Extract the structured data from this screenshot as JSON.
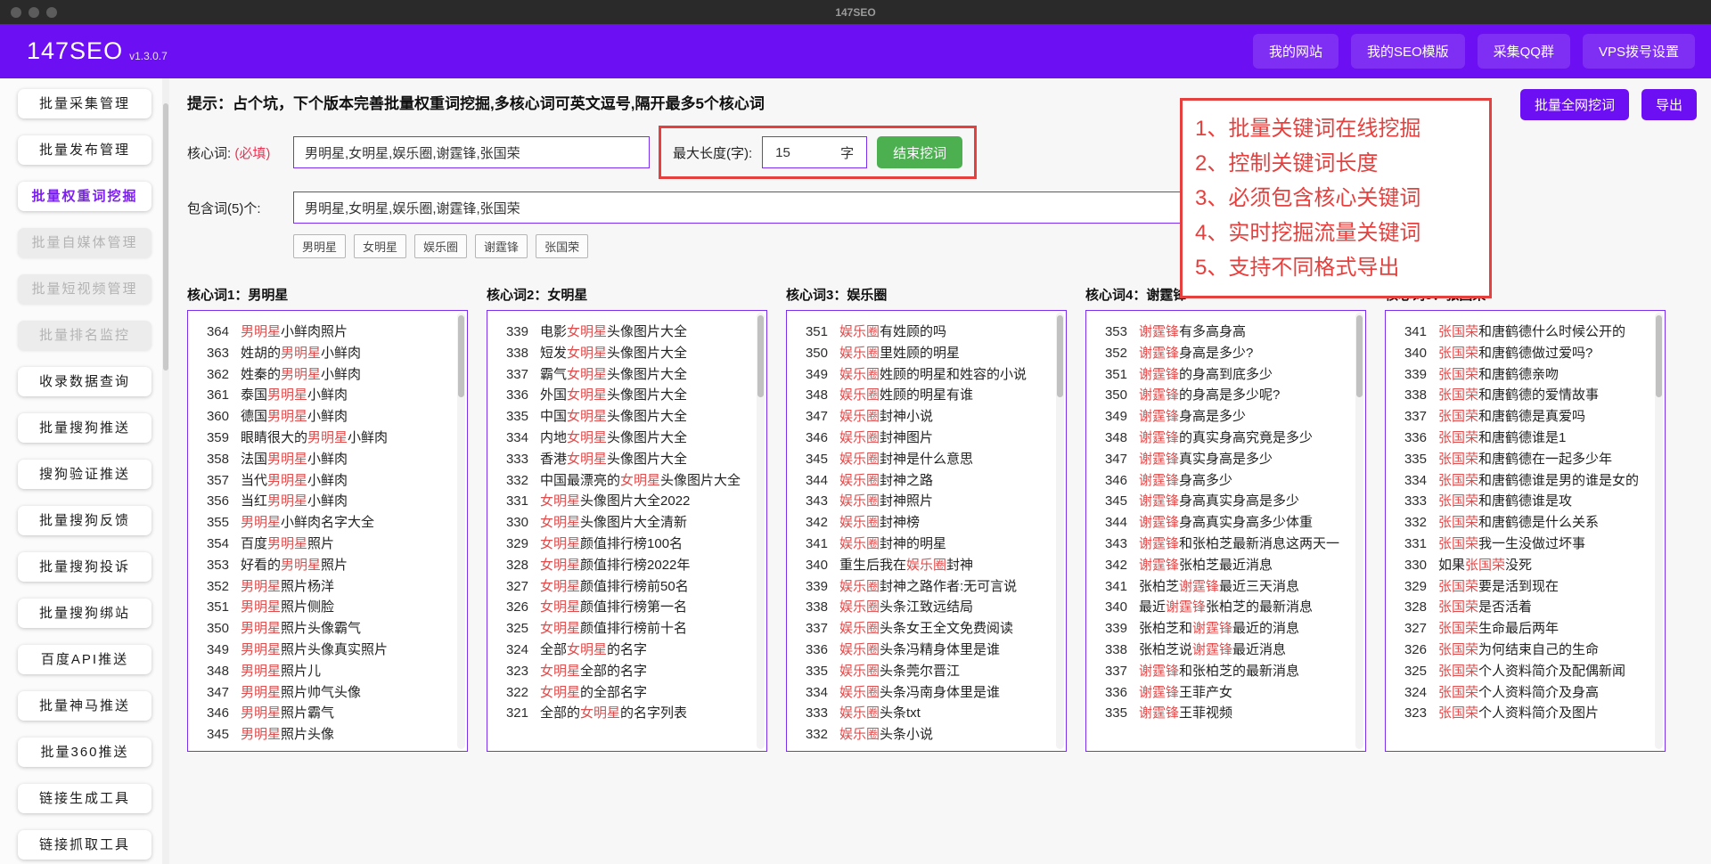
{
  "window": {
    "title": "147SEO"
  },
  "header": {
    "brand": "147SEO",
    "version": "v1.3.0.7",
    "nav": [
      "我的网站",
      "我的SEO模版",
      "采集QQ群",
      "VPS拨号设置"
    ]
  },
  "sidebar": {
    "items": [
      {
        "label": "批量采集管理",
        "state": "normal"
      },
      {
        "label": "批量发布管理",
        "state": "normal"
      },
      {
        "label": "批量权重词挖掘",
        "state": "active"
      },
      {
        "label": "批量自媒体管理",
        "state": "disabled"
      },
      {
        "label": "批量短视频管理",
        "state": "disabled"
      },
      {
        "label": "批量排名监控",
        "state": "disabled"
      },
      {
        "label": "收录数据查询",
        "state": "normal"
      },
      {
        "label": "批量搜狗推送",
        "state": "normal"
      },
      {
        "label": "搜狗验证推送",
        "state": "normal"
      },
      {
        "label": "批量搜狗反馈",
        "state": "normal"
      },
      {
        "label": "批量搜狗投诉",
        "state": "normal"
      },
      {
        "label": "批量搜狗绑站",
        "state": "normal"
      },
      {
        "label": "百度API推送",
        "state": "normal"
      },
      {
        "label": "批量神马推送",
        "state": "normal"
      },
      {
        "label": "批量360推送",
        "state": "normal"
      },
      {
        "label": "链接生成工具",
        "state": "normal"
      },
      {
        "label": "链接抓取工具",
        "state": "normal"
      }
    ]
  },
  "toolbar": {
    "dig_all": "批量全网挖词",
    "export": "导出"
  },
  "tip": "提示：占个坑，下个版本完善批量权重词挖掘,多核心词可英文逗号,隔开最多5个核心词",
  "form": {
    "core_label": "核心词:",
    "required": "(必填)",
    "core_value": "男明星,女明星,娱乐圈,谢霆锋,张国荣",
    "maxlen_label": "最大长度(字):",
    "maxlen_value": "15",
    "maxlen_suffix": "字",
    "submit": "结束挖词",
    "include_label": "包含词(5)个:",
    "include_value": "男明星,女明星,娱乐圈,谢霆锋,张国荣",
    "tags": [
      "男明星",
      "女明星",
      "娱乐圈",
      "谢霆锋",
      "张国荣"
    ]
  },
  "annotation": {
    "lines": [
      "1、批量关键词在线挖掘",
      "2、控制关键词长度",
      "3、必须包含核心关键词",
      "4、实时挖掘流量关键词",
      "5、支持不同格式导出"
    ]
  },
  "columns": [
    {
      "title": "核心词1：男明星",
      "keyword": "男明星",
      "rows": [
        {
          "n": 364,
          "pre": "",
          "post": "小鲜肉照片"
        },
        {
          "n": 363,
          "pre": "姓胡的",
          "post": "小鲜肉"
        },
        {
          "n": 362,
          "pre": "姓秦的",
          "post": "小鲜肉"
        },
        {
          "n": 361,
          "pre": "泰国",
          "post": "小鲜肉"
        },
        {
          "n": 360,
          "pre": "德国",
          "post": "小鲜肉"
        },
        {
          "n": 359,
          "pre": "眼睛很大的",
          "post": "小鲜肉"
        },
        {
          "n": 358,
          "pre": "法国",
          "post": "小鲜肉"
        },
        {
          "n": 357,
          "pre": "当代",
          "post": "小鲜肉"
        },
        {
          "n": 356,
          "pre": "当红",
          "post": "小鲜肉"
        },
        {
          "n": 355,
          "pre": "",
          "post": "小鲜肉名字大全"
        },
        {
          "n": 354,
          "pre": "百度",
          "post": "照片"
        },
        {
          "n": 353,
          "pre": "好看的",
          "post": "照片"
        },
        {
          "n": 352,
          "pre": "",
          "post": "照片杨洋"
        },
        {
          "n": 351,
          "pre": "",
          "post": "照片侧脸"
        },
        {
          "n": 350,
          "pre": "",
          "post": "照片头像霸气"
        },
        {
          "n": 349,
          "pre": "",
          "post": "照片头像真实照片"
        },
        {
          "n": 348,
          "pre": "",
          "post": "照片儿"
        },
        {
          "n": 347,
          "pre": "",
          "post": "照片帅气头像"
        },
        {
          "n": 346,
          "pre": "",
          "post": "照片霸气"
        },
        {
          "n": 345,
          "pre": "",
          "post": "照片头像"
        }
      ]
    },
    {
      "title": "核心词2：女明星",
      "keyword": "女明星",
      "rows": [
        {
          "n": 339,
          "pre": "电影",
          "post": "头像图片大全"
        },
        {
          "n": 338,
          "pre": "短发",
          "post": "头像图片大全"
        },
        {
          "n": 337,
          "pre": "霸气",
          "post": "头像图片大全"
        },
        {
          "n": 336,
          "pre": "外国",
          "post": "头像图片大全"
        },
        {
          "n": 335,
          "pre": "中国",
          "post": "头像图片大全"
        },
        {
          "n": 334,
          "pre": "内地",
          "post": "头像图片大全"
        },
        {
          "n": 333,
          "pre": "香港",
          "post": "头像图片大全"
        },
        {
          "n": 332,
          "pre": "中国最漂亮的",
          "post": "头像图片大全"
        },
        {
          "n": 331,
          "pre": "",
          "post": "头像图片大全2022"
        },
        {
          "n": 330,
          "pre": "",
          "post": "头像图片大全清新"
        },
        {
          "n": 329,
          "pre": "",
          "post": "颜值排行榜100名"
        },
        {
          "n": 328,
          "pre": "",
          "post": "颜值排行榜2022年"
        },
        {
          "n": 327,
          "pre": "",
          "post": "颜值排行榜前50名"
        },
        {
          "n": 326,
          "pre": "",
          "post": "颜值排行榜第一名"
        },
        {
          "n": 325,
          "pre": "",
          "post": "颜值排行榜前十名"
        },
        {
          "n": 324,
          "pre": "全部",
          "post": "的名字"
        },
        {
          "n": 323,
          "pre": "",
          "post": "全部的名字"
        },
        {
          "n": 322,
          "pre": "",
          "post": "的全部名字"
        },
        {
          "n": 321,
          "pre": "全部的",
          "post": "的名字列表"
        }
      ]
    },
    {
      "title": "核心词3：娱乐圈",
      "keyword": "娱乐圈",
      "rows": [
        {
          "n": 351,
          "pre": "",
          "post": "有姓顾的吗"
        },
        {
          "n": 350,
          "pre": "",
          "post": "里姓顾的明星"
        },
        {
          "n": 349,
          "pre": "",
          "post": "姓顾的明星和姓容的小说"
        },
        {
          "n": 348,
          "pre": "",
          "post": "姓顾的明星有谁"
        },
        {
          "n": 347,
          "pre": "",
          "post": "封神小说"
        },
        {
          "n": 346,
          "pre": "",
          "post": "封神图片"
        },
        {
          "n": 345,
          "pre": "",
          "post": "封神是什么意思"
        },
        {
          "n": 344,
          "pre": "",
          "post": "封神之路"
        },
        {
          "n": 343,
          "pre": "",
          "post": "封神照片"
        },
        {
          "n": 342,
          "pre": "",
          "post": "封神榜"
        },
        {
          "n": 341,
          "pre": "",
          "post": "封神的明星"
        },
        {
          "n": 340,
          "pre": "重生后我在",
          "post": "封神"
        },
        {
          "n": 339,
          "pre": "",
          "post": "封神之路作者:无可言说"
        },
        {
          "n": 338,
          "pre": "",
          "post": "头条江致远结局"
        },
        {
          "n": 337,
          "pre": "",
          "post": "头条女王全文免费阅读"
        },
        {
          "n": 336,
          "pre": "",
          "post": "头条冯精身体里是谁"
        },
        {
          "n": 335,
          "pre": "",
          "post": "头条莞尔晋江"
        },
        {
          "n": 334,
          "pre": "",
          "post": "头条冯南身体里是谁"
        },
        {
          "n": 333,
          "pre": "",
          "post": "头条txt"
        },
        {
          "n": 332,
          "pre": "",
          "post": "头条小说"
        }
      ]
    },
    {
      "title": "核心词4：谢霆锋",
      "keyword": "谢霆锋",
      "rows": [
        {
          "n": 353,
          "pre": "",
          "post": "有多高身高"
        },
        {
          "n": 352,
          "pre": "",
          "post": "身高是多少?"
        },
        {
          "n": 351,
          "pre": "",
          "post": "的身高到底多少"
        },
        {
          "n": 350,
          "pre": "",
          "post": "的身高是多少呢?"
        },
        {
          "n": 349,
          "pre": "",
          "post": "身高是多少"
        },
        {
          "n": 348,
          "pre": "",
          "post": "的真实身高究竟是多少"
        },
        {
          "n": 347,
          "pre": "",
          "post": "真实身高是多少"
        },
        {
          "n": 346,
          "pre": "",
          "post": "身高多少"
        },
        {
          "n": 345,
          "pre": "",
          "post": "身高真实身高是多少"
        },
        {
          "n": 344,
          "pre": "",
          "post": "身高真实身高多少体重"
        },
        {
          "n": 343,
          "pre": "",
          "post": "和张柏芝最新消息这两天一"
        },
        {
          "n": 342,
          "pre": "",
          "post": "张柏芝最近消息"
        },
        {
          "n": 341,
          "pre": "张柏芝",
          "post": "最近三天消息"
        },
        {
          "n": 340,
          "pre": "最近",
          "post": "张柏芝的最新消息"
        },
        {
          "n": 339,
          "pre": "张柏芝和",
          "post": "最近的消息"
        },
        {
          "n": 338,
          "pre": "张柏芝说",
          "post": "最近消息"
        },
        {
          "n": 337,
          "pre": "",
          "post": "和张柏芝的最新消息"
        },
        {
          "n": 336,
          "pre": "",
          "post": "王菲产女"
        },
        {
          "n": 335,
          "pre": "",
          "post": "王菲视频"
        }
      ]
    },
    {
      "title": "核心词5：张国荣",
      "keyword": "张国荣",
      "rows": [
        {
          "n": 341,
          "pre": "",
          "post": "和唐鹤德什么时候公开的"
        },
        {
          "n": 340,
          "pre": "",
          "post": "和唐鹤德做过爱吗?"
        },
        {
          "n": 339,
          "pre": "",
          "post": "和唐鹤德亲吻"
        },
        {
          "n": 338,
          "pre": "",
          "post": "和唐鹤德的爱情故事"
        },
        {
          "n": 337,
          "pre": "",
          "post": "和唐鹤德是真爱吗"
        },
        {
          "n": 336,
          "pre": "",
          "post": "和唐鹤德谁是1"
        },
        {
          "n": 335,
          "pre": "",
          "post": "和唐鹤德在一起多少年"
        },
        {
          "n": 334,
          "pre": "",
          "post": "和唐鹤德谁是男的谁是女的"
        },
        {
          "n": 333,
          "pre": "",
          "post": "和唐鹤德谁是攻"
        },
        {
          "n": 332,
          "pre": "",
          "post": "和唐鹤德是什么关系"
        },
        {
          "n": 331,
          "pre": "",
          "post": "我一生没做过坏事"
        },
        {
          "n": 330,
          "pre": "如果",
          "post": "没死"
        },
        {
          "n": 329,
          "pre": "",
          "post": "要是活到现在"
        },
        {
          "n": 328,
          "pre": "",
          "post": "是否活着"
        },
        {
          "n": 327,
          "pre": "",
          "post": "生命最后两年"
        },
        {
          "n": 326,
          "pre": "",
          "post": "为何结束自己的生命"
        },
        {
          "n": 325,
          "pre": "",
          "post": "个人资料简介及配偶新闻"
        },
        {
          "n": 324,
          "pre": "",
          "post": "个人资料简介及身高"
        },
        {
          "n": 323,
          "pre": "",
          "post": "个人资料简介及图片"
        }
      ]
    }
  ],
  "colors": {
    "header_purple": "#6c0ff2",
    "button_purple": "#6c0ff2",
    "submit_green": "#4caf50",
    "annotation_red": "#e5403d",
    "keyword_red": "#e04b4b",
    "required_red": "#ee3355",
    "input_border_purple": "#7b2ff0"
  }
}
